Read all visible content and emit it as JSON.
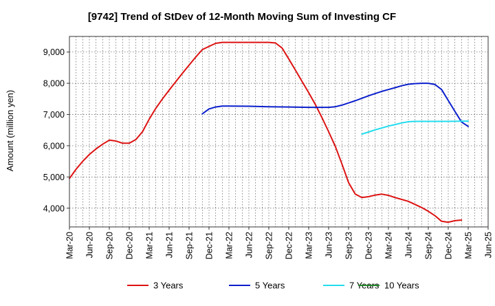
{
  "chart_data": {
    "type": "line",
    "title": "[9742]  Trend of StDev of 12-Month Moving Sum of Investing CF",
    "ylabel": "Amount (million yen)",
    "xlabel": "",
    "ylim": [
      3400,
      9500
    ],
    "yticks": [
      4000,
      5000,
      6000,
      7000,
      8000,
      9000
    ],
    "ytick_labels": [
      "4,000",
      "5,000",
      "6,000",
      "7,000",
      "8,000",
      "9,000"
    ],
    "x_start": "2020-03",
    "x_end": "2025-06",
    "xtick_labels": [
      "Mar-20",
      "Jun-20",
      "Sep-20",
      "Dec-20",
      "Mar-21",
      "Jun-21",
      "Sep-21",
      "Dec-21",
      "Mar-22",
      "Jun-22",
      "Sep-22",
      "Dec-22",
      "Mar-23",
      "Jun-23",
      "Sep-23",
      "Dec-23",
      "Mar-24",
      "Jun-24",
      "Sep-24",
      "Dec-24",
      "Mar-25",
      "Jun-25"
    ],
    "grid": true,
    "legend_position": "bottom",
    "series": [
      {
        "name": "3 Years",
        "color": "#dd1111",
        "points": [
          [
            "2020-03",
            4950
          ],
          [
            "2020-04",
            5250
          ],
          [
            "2020-05",
            5500
          ],
          [
            "2020-06",
            5720
          ],
          [
            "2020-07",
            5900
          ],
          [
            "2020-08",
            6050
          ],
          [
            "2020-09",
            6180
          ],
          [
            "2020-10",
            6150
          ],
          [
            "2020-11",
            6080
          ],
          [
            "2020-12",
            6080
          ],
          [
            "2021-01",
            6200
          ],
          [
            "2021-02",
            6450
          ],
          [
            "2021-03",
            6850
          ],
          [
            "2021-04",
            7200
          ],
          [
            "2021-05",
            7500
          ],
          [
            "2021-06",
            7780
          ],
          [
            "2021-07",
            8050
          ],
          [
            "2021-08",
            8320
          ],
          [
            "2021-09",
            8580
          ],
          [
            "2021-10",
            8840
          ],
          [
            "2021-11",
            9080
          ],
          [
            "2021-12",
            9180
          ],
          [
            "2022-01",
            9280
          ],
          [
            "2022-02",
            9310
          ],
          [
            "2022-03",
            9310
          ],
          [
            "2022-04",
            9310
          ],
          [
            "2022-05",
            9310
          ],
          [
            "2022-06",
            9310
          ],
          [
            "2022-07",
            9310
          ],
          [
            "2022-08",
            9310
          ],
          [
            "2022-09",
            9310
          ],
          [
            "2022-10",
            9290
          ],
          [
            "2022-11",
            9130
          ],
          [
            "2022-12",
            8780
          ],
          [
            "2023-01",
            8420
          ],
          [
            "2023-02",
            8060
          ],
          [
            "2023-03",
            7700
          ],
          [
            "2023-04",
            7320
          ],
          [
            "2023-05",
            6900
          ],
          [
            "2023-06",
            6450
          ],
          [
            "2023-07",
            5980
          ],
          [
            "2023-08",
            5420
          ],
          [
            "2023-09",
            4820
          ],
          [
            "2023-10",
            4450
          ],
          [
            "2023-11",
            4340
          ],
          [
            "2023-12",
            4370
          ],
          [
            "2024-01",
            4420
          ],
          [
            "2024-02",
            4450
          ],
          [
            "2024-03",
            4410
          ],
          [
            "2024-04",
            4340
          ],
          [
            "2024-05",
            4280
          ],
          [
            "2024-06",
            4220
          ],
          [
            "2024-07",
            4120
          ],
          [
            "2024-08",
            4020
          ],
          [
            "2024-09",
            3900
          ],
          [
            "2024-10",
            3760
          ],
          [
            "2024-11",
            3580
          ],
          [
            "2024-12",
            3550
          ],
          [
            "2025-01",
            3600
          ],
          [
            "2025-02",
            3620
          ]
        ]
      },
      {
        "name": "5 Years",
        "color": "#0a1ecc",
        "points": [
          [
            "2021-11",
            7020
          ],
          [
            "2021-12",
            7180
          ],
          [
            "2022-01",
            7240
          ],
          [
            "2022-02",
            7270
          ],
          [
            "2022-03",
            7270
          ],
          [
            "2022-06",
            7265
          ],
          [
            "2022-09",
            7250
          ],
          [
            "2022-12",
            7240
          ],
          [
            "2023-03",
            7230
          ],
          [
            "2023-06",
            7230
          ],
          [
            "2023-07",
            7250
          ],
          [
            "2023-08",
            7300
          ],
          [
            "2023-09",
            7370
          ],
          [
            "2023-10",
            7440
          ],
          [
            "2023-11",
            7520
          ],
          [
            "2023-12",
            7600
          ],
          [
            "2024-01",
            7670
          ],
          [
            "2024-02",
            7740
          ],
          [
            "2024-03",
            7800
          ],
          [
            "2024-04",
            7860
          ],
          [
            "2024-05",
            7920
          ],
          [
            "2024-06",
            7970
          ],
          [
            "2024-07",
            7990
          ],
          [
            "2024-08",
            8000
          ],
          [
            "2024-09",
            8000
          ],
          [
            "2024-10",
            7960
          ],
          [
            "2024-11",
            7800
          ],
          [
            "2024-12",
            7450
          ],
          [
            "2025-01",
            7100
          ],
          [
            "2025-02",
            6760
          ],
          [
            "2025-03",
            6620
          ]
        ]
      },
      {
        "name": "7 Years",
        "color": "#22ddee",
        "points": [
          [
            "2023-11",
            6370
          ],
          [
            "2023-12",
            6440
          ],
          [
            "2024-01",
            6510
          ],
          [
            "2024-02",
            6570
          ],
          [
            "2024-03",
            6630
          ],
          [
            "2024-04",
            6680
          ],
          [
            "2024-05",
            6730
          ],
          [
            "2024-06",
            6770
          ],
          [
            "2024-07",
            6780
          ],
          [
            "2024-08",
            6780
          ],
          [
            "2024-09",
            6780
          ],
          [
            "2024-12",
            6780
          ],
          [
            "2025-03",
            6790
          ]
        ]
      },
      {
        "name": "10 Years",
        "color": "#22882a",
        "points": []
      }
    ]
  }
}
